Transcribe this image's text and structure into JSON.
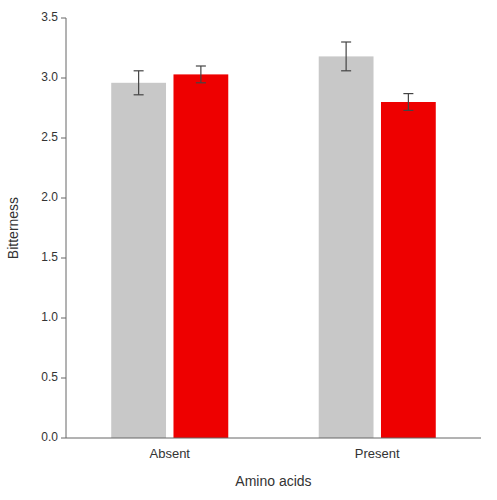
{
  "chart_data": {
    "type": "bar",
    "xlabel": "Amino acids",
    "ylabel": "Bitterness",
    "categories": [
      "Absent",
      "Present"
    ],
    "series": [
      {
        "color": "#c8c8c8",
        "values": [
          2.96,
          3.18
        ],
        "errors": [
          0.1,
          0.12
        ]
      },
      {
        "color": "#ee0000",
        "values": [
          3.03,
          2.8
        ],
        "errors": [
          0.07,
          0.07
        ]
      }
    ],
    "ylim": [
      0,
      3.5
    ],
    "yticks": [
      {
        "value": 0,
        "label": "0.0"
      },
      0.5,
      {
        "value": 1,
        "label": "1.0"
      },
      1.5,
      {
        "value": 2,
        "label": "2.0"
      },
      2.5,
      {
        "value": 3,
        "label": "3.0"
      },
      3.5
    ],
    "grid": false
  }
}
